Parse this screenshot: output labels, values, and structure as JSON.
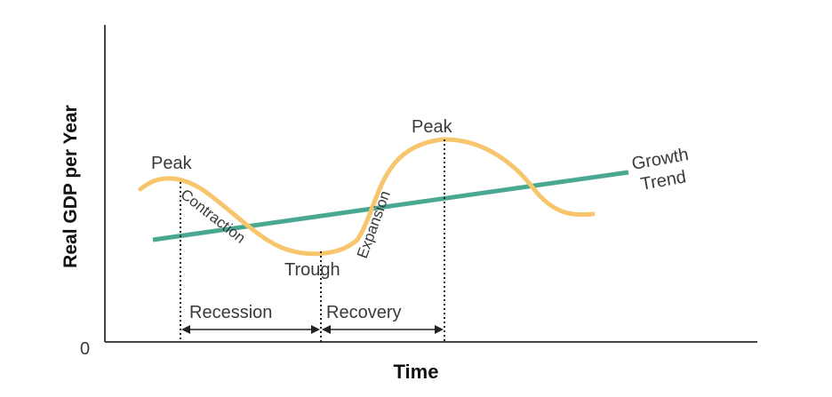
{
  "diagram": {
    "ylabel": "Real GDP per Year",
    "xlabel": "Time",
    "origin": "0",
    "labels": {
      "peak_1": "Peak",
      "peak_2": "Peak",
      "trough": "Trough",
      "contraction": "Contraction",
      "expansion": "Expansion",
      "recession": "Recession",
      "recovery": "Recovery",
      "growth_line1": "Growth",
      "growth_line2": "Trend"
    },
    "colors": {
      "cycle": "#f7c56b",
      "trend": "#4aa890",
      "axis": "#444444",
      "guide": "#222222"
    }
  }
}
